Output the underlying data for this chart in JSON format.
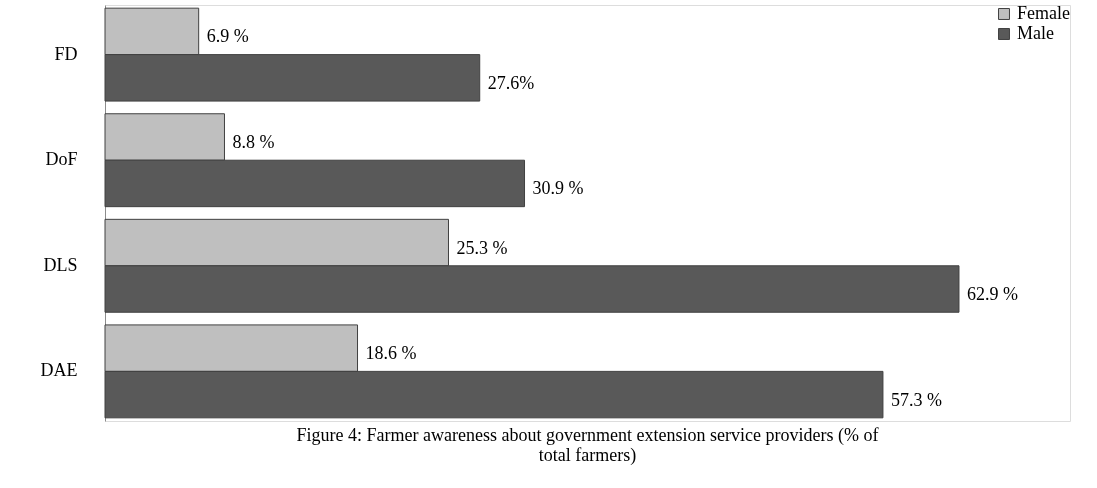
{
  "chart_data": {
    "type": "bar",
    "orientation": "horizontal",
    "title": "Figure 4: Farmer awareness about government extension service providers (% of total farmers)",
    "categories": [
      "FD",
      "DoF",
      "DLS",
      "DAE"
    ],
    "series": [
      {
        "name": "Female",
        "color": "#bfbfbf",
        "values": [
          6.9,
          8.8,
          25.3,
          18.6
        ],
        "value_labels": [
          "6.9 %",
          "8.8 %",
          "25.3 %",
          "18.6 %"
        ]
      },
      {
        "name": "Male",
        "color": "#595959",
        "values": [
          27.6,
          30.9,
          62.9,
          57.3
        ],
        "value_labels": [
          "27.6%",
          "30.9 %",
          "62.9 %",
          "57.3 %"
        ]
      }
    ],
    "legend": "top right",
    "grid": false
  }
}
